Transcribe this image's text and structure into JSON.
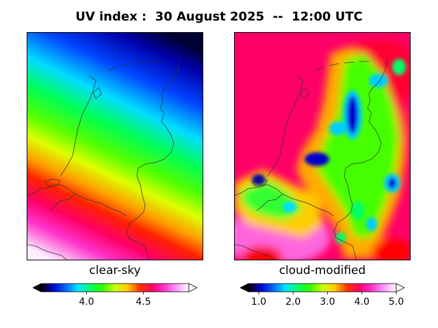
{
  "title": "UV index :  30 August 2025  --  12:00 UTC",
  "panels": [
    {
      "label": "clear-sky",
      "colorbar": {
        "ticks": [
          "4.0",
          "4.5"
        ],
        "tick_values": [
          4.0,
          4.5
        ],
        "range": [
          3.6,
          4.9
        ]
      }
    },
    {
      "label": "cloud-modified",
      "colorbar": {
        "ticks": [
          "1.0",
          "2.0",
          "3.0",
          "4.0",
          "5.0"
        ],
        "tick_values": [
          1.0,
          2.0,
          3.0,
          4.0,
          5.0
        ],
        "range": [
          0.7,
          5.0
        ]
      }
    }
  ],
  "colormap": [
    "#000000",
    "#0000cc",
    "#0066ff",
    "#00e5ff",
    "#00ff66",
    "#33ff00",
    "#ccff00",
    "#ffcc00",
    "#ff3300",
    "#ff0066",
    "#ff33cc",
    "#ff99ff",
    "#ffffff"
  ]
}
